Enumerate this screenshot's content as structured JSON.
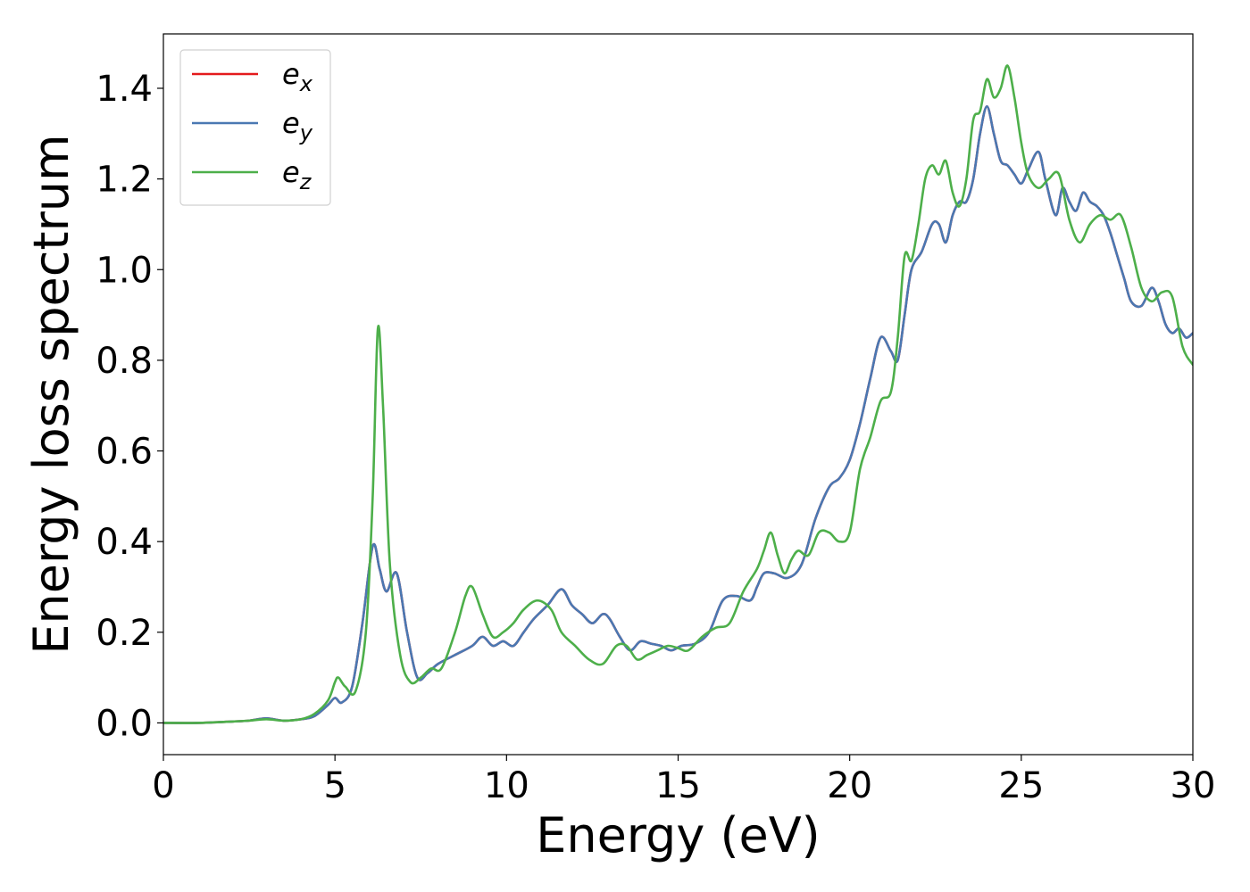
{
  "chart_data": {
    "type": "line",
    "title": "",
    "xlabel": "Energy (eV)",
    "ylabel": "Energy loss spectrum",
    "xlim": [
      0,
      30
    ],
    "ylim": [
      -0.07,
      1.52
    ],
    "xticks": [
      0,
      5,
      10,
      15,
      20,
      25,
      30
    ],
    "xtick_labels": [
      "0",
      "5",
      "10",
      "15",
      "20",
      "25",
      "30"
    ],
    "yticks": [
      0.0,
      0.2,
      0.4,
      0.6,
      0.8,
      1.0,
      1.2,
      1.4
    ],
    "ytick_labels": [
      "0.0",
      "0.2",
      "0.4",
      "0.6",
      "0.8",
      "1.0",
      "1.2",
      "1.4"
    ],
    "grid": false,
    "legend": {
      "position": "top-left",
      "entries": [
        {
          "base": "e",
          "sub": "x",
          "color": "#e41a1c"
        },
        {
          "base": "e",
          "sub": "y",
          "color": "#4a78b2"
        },
        {
          "base": "e",
          "sub": "z",
          "color": "#4daf4a"
        }
      ]
    },
    "series": [
      {
        "name": "e_x",
        "color": "#e41a1c",
        "x": [
          0,
          1,
          2,
          2.5,
          3,
          3.5,
          4,
          4.4,
          4.8,
          5.0,
          5.2,
          5.5,
          5.8,
          6.1,
          6.3,
          6.5,
          6.8,
          7.1,
          7.4,
          7.7,
          8.0,
          8.5,
          9.0,
          9.3,
          9.6,
          9.9,
          10.2,
          10.5,
          10.8,
          11.2,
          11.6,
          11.9,
          12.2,
          12.5,
          12.8,
          13.0,
          13.3,
          13.6,
          13.9,
          14.2,
          14.5,
          14.8,
          15.1,
          15.5,
          15.9,
          16.3,
          16.7,
          17.1,
          17.3,
          17.5,
          17.8,
          18.2,
          18.6,
          19.0,
          19.4,
          19.7,
          20.0,
          20.3,
          20.6,
          20.9,
          21.2,
          21.4,
          21.6,
          21.8,
          22.1,
          22.4,
          22.6,
          22.8,
          23.0,
          23.2,
          23.4,
          23.6,
          23.8,
          24.0,
          24.2,
          24.4,
          24.6,
          24.8,
          25.0,
          25.2,
          25.5,
          25.7,
          26.0,
          26.2,
          26.4,
          26.6,
          26.8,
          27.0,
          27.2,
          27.4,
          27.6,
          27.8,
          28.0,
          28.2,
          28.5,
          28.8,
          29.0,
          29.2,
          29.4,
          29.6,
          29.8,
          30.0
        ],
        "y": [
          0.0,
          0.0,
          0.003,
          0.005,
          0.01,
          0.005,
          0.008,
          0.015,
          0.04,
          0.055,
          0.045,
          0.08,
          0.22,
          0.39,
          0.34,
          0.29,
          0.33,
          0.2,
          0.1,
          0.11,
          0.13,
          0.15,
          0.17,
          0.19,
          0.17,
          0.18,
          0.17,
          0.2,
          0.23,
          0.26,
          0.295,
          0.26,
          0.24,
          0.22,
          0.24,
          0.23,
          0.19,
          0.16,
          0.18,
          0.175,
          0.17,
          0.16,
          0.17,
          0.175,
          0.2,
          0.27,
          0.28,
          0.27,
          0.3,
          0.33,
          0.33,
          0.32,
          0.35,
          0.45,
          0.52,
          0.54,
          0.58,
          0.66,
          0.76,
          0.85,
          0.82,
          0.8,
          0.9,
          1.0,
          1.04,
          1.1,
          1.1,
          1.06,
          1.12,
          1.15,
          1.15,
          1.2,
          1.3,
          1.36,
          1.3,
          1.24,
          1.23,
          1.21,
          1.19,
          1.22,
          1.26,
          1.2,
          1.12,
          1.18,
          1.15,
          1.13,
          1.17,
          1.15,
          1.14,
          1.12,
          1.08,
          1.03,
          0.98,
          0.93,
          0.92,
          0.96,
          0.93,
          0.88,
          0.86,
          0.87,
          0.85,
          0.86
        ]
      },
      {
        "name": "e_y",
        "color": "#4a78b2",
        "x": [
          0,
          1,
          2,
          2.5,
          3,
          3.5,
          4,
          4.4,
          4.8,
          5.0,
          5.2,
          5.5,
          5.8,
          6.1,
          6.3,
          6.5,
          6.8,
          7.1,
          7.4,
          7.7,
          8.0,
          8.5,
          9.0,
          9.3,
          9.6,
          9.9,
          10.2,
          10.5,
          10.8,
          11.2,
          11.6,
          11.9,
          12.2,
          12.5,
          12.8,
          13.0,
          13.3,
          13.6,
          13.9,
          14.2,
          14.5,
          14.8,
          15.1,
          15.5,
          15.9,
          16.3,
          16.7,
          17.1,
          17.3,
          17.5,
          17.8,
          18.2,
          18.6,
          19.0,
          19.4,
          19.7,
          20.0,
          20.3,
          20.6,
          20.9,
          21.2,
          21.4,
          21.6,
          21.8,
          22.1,
          22.4,
          22.6,
          22.8,
          23.0,
          23.2,
          23.4,
          23.6,
          23.8,
          24.0,
          24.2,
          24.4,
          24.6,
          24.8,
          25.0,
          25.2,
          25.5,
          25.7,
          26.0,
          26.2,
          26.4,
          26.6,
          26.8,
          27.0,
          27.2,
          27.4,
          27.6,
          27.8,
          28.0,
          28.2,
          28.5,
          28.8,
          29.0,
          29.2,
          29.4,
          29.6,
          29.8,
          30.0
        ],
        "y": [
          0.0,
          0.0,
          0.003,
          0.005,
          0.01,
          0.005,
          0.008,
          0.015,
          0.04,
          0.055,
          0.045,
          0.08,
          0.22,
          0.39,
          0.34,
          0.29,
          0.33,
          0.2,
          0.1,
          0.11,
          0.13,
          0.15,
          0.17,
          0.19,
          0.17,
          0.18,
          0.17,
          0.2,
          0.23,
          0.26,
          0.295,
          0.26,
          0.24,
          0.22,
          0.24,
          0.23,
          0.19,
          0.16,
          0.18,
          0.175,
          0.17,
          0.16,
          0.17,
          0.175,
          0.2,
          0.27,
          0.28,
          0.27,
          0.3,
          0.33,
          0.33,
          0.32,
          0.35,
          0.45,
          0.52,
          0.54,
          0.58,
          0.66,
          0.76,
          0.85,
          0.82,
          0.8,
          0.9,
          1.0,
          1.04,
          1.1,
          1.1,
          1.06,
          1.12,
          1.15,
          1.15,
          1.2,
          1.3,
          1.36,
          1.3,
          1.24,
          1.23,
          1.21,
          1.19,
          1.22,
          1.26,
          1.2,
          1.12,
          1.18,
          1.15,
          1.13,
          1.17,
          1.15,
          1.14,
          1.12,
          1.08,
          1.03,
          0.98,
          0.93,
          0.92,
          0.96,
          0.93,
          0.88,
          0.86,
          0.87,
          0.85,
          0.86
        ]
      },
      {
        "name": "e_z",
        "color": "#4daf4a",
        "x": [
          0,
          1,
          2,
          2.5,
          3,
          3.5,
          4,
          4.4,
          4.8,
          5.0,
          5.1,
          5.3,
          5.6,
          5.9,
          6.1,
          6.25,
          6.4,
          6.6,
          6.9,
          7.2,
          7.5,
          7.8,
          8.1,
          8.5,
          8.8,
          9.0,
          9.3,
          9.6,
          9.9,
          10.2,
          10.5,
          10.9,
          11.3,
          11.6,
          12.0,
          12.4,
          12.8,
          13.2,
          13.5,
          13.8,
          14.1,
          14.4,
          14.7,
          15.0,
          15.3,
          15.7,
          16.1,
          16.5,
          16.9,
          17.3,
          17.5,
          17.7,
          17.9,
          18.1,
          18.3,
          18.5,
          18.8,
          19.1,
          19.4,
          19.7,
          20.0,
          20.3,
          20.6,
          20.9,
          21.2,
          21.4,
          21.6,
          21.8,
          22.0,
          22.2,
          22.4,
          22.6,
          22.8,
          23.0,
          23.2,
          23.4,
          23.6,
          23.8,
          24.0,
          24.2,
          24.4,
          24.6,
          24.8,
          25.0,
          25.2,
          25.5,
          25.8,
          26.1,
          26.4,
          26.7,
          27.0,
          27.3,
          27.6,
          27.9,
          28.2,
          28.5,
          28.8,
          29.1,
          29.4,
          29.7,
          30.0
        ],
        "y": [
          0.0,
          0.0,
          0.003,
          0.005,
          0.008,
          0.005,
          0.008,
          0.02,
          0.05,
          0.09,
          0.1,
          0.08,
          0.07,
          0.2,
          0.5,
          0.87,
          0.7,
          0.35,
          0.15,
          0.09,
          0.1,
          0.12,
          0.12,
          0.2,
          0.28,
          0.3,
          0.24,
          0.19,
          0.2,
          0.22,
          0.25,
          0.27,
          0.25,
          0.2,
          0.17,
          0.14,
          0.13,
          0.17,
          0.17,
          0.14,
          0.15,
          0.16,
          0.17,
          0.165,
          0.16,
          0.19,
          0.21,
          0.22,
          0.29,
          0.34,
          0.38,
          0.42,
          0.37,
          0.33,
          0.36,
          0.38,
          0.37,
          0.42,
          0.42,
          0.4,
          0.42,
          0.56,
          0.63,
          0.71,
          0.73,
          0.85,
          1.03,
          1.02,
          1.1,
          1.2,
          1.23,
          1.21,
          1.24,
          1.17,
          1.14,
          1.2,
          1.33,
          1.35,
          1.42,
          1.38,
          1.4,
          1.45,
          1.38,
          1.28,
          1.21,
          1.18,
          1.2,
          1.21,
          1.11,
          1.06,
          1.1,
          1.12,
          1.11,
          1.12,
          1.05,
          0.96,
          0.93,
          0.95,
          0.94,
          0.83,
          0.79
        ]
      }
    ]
  }
}
